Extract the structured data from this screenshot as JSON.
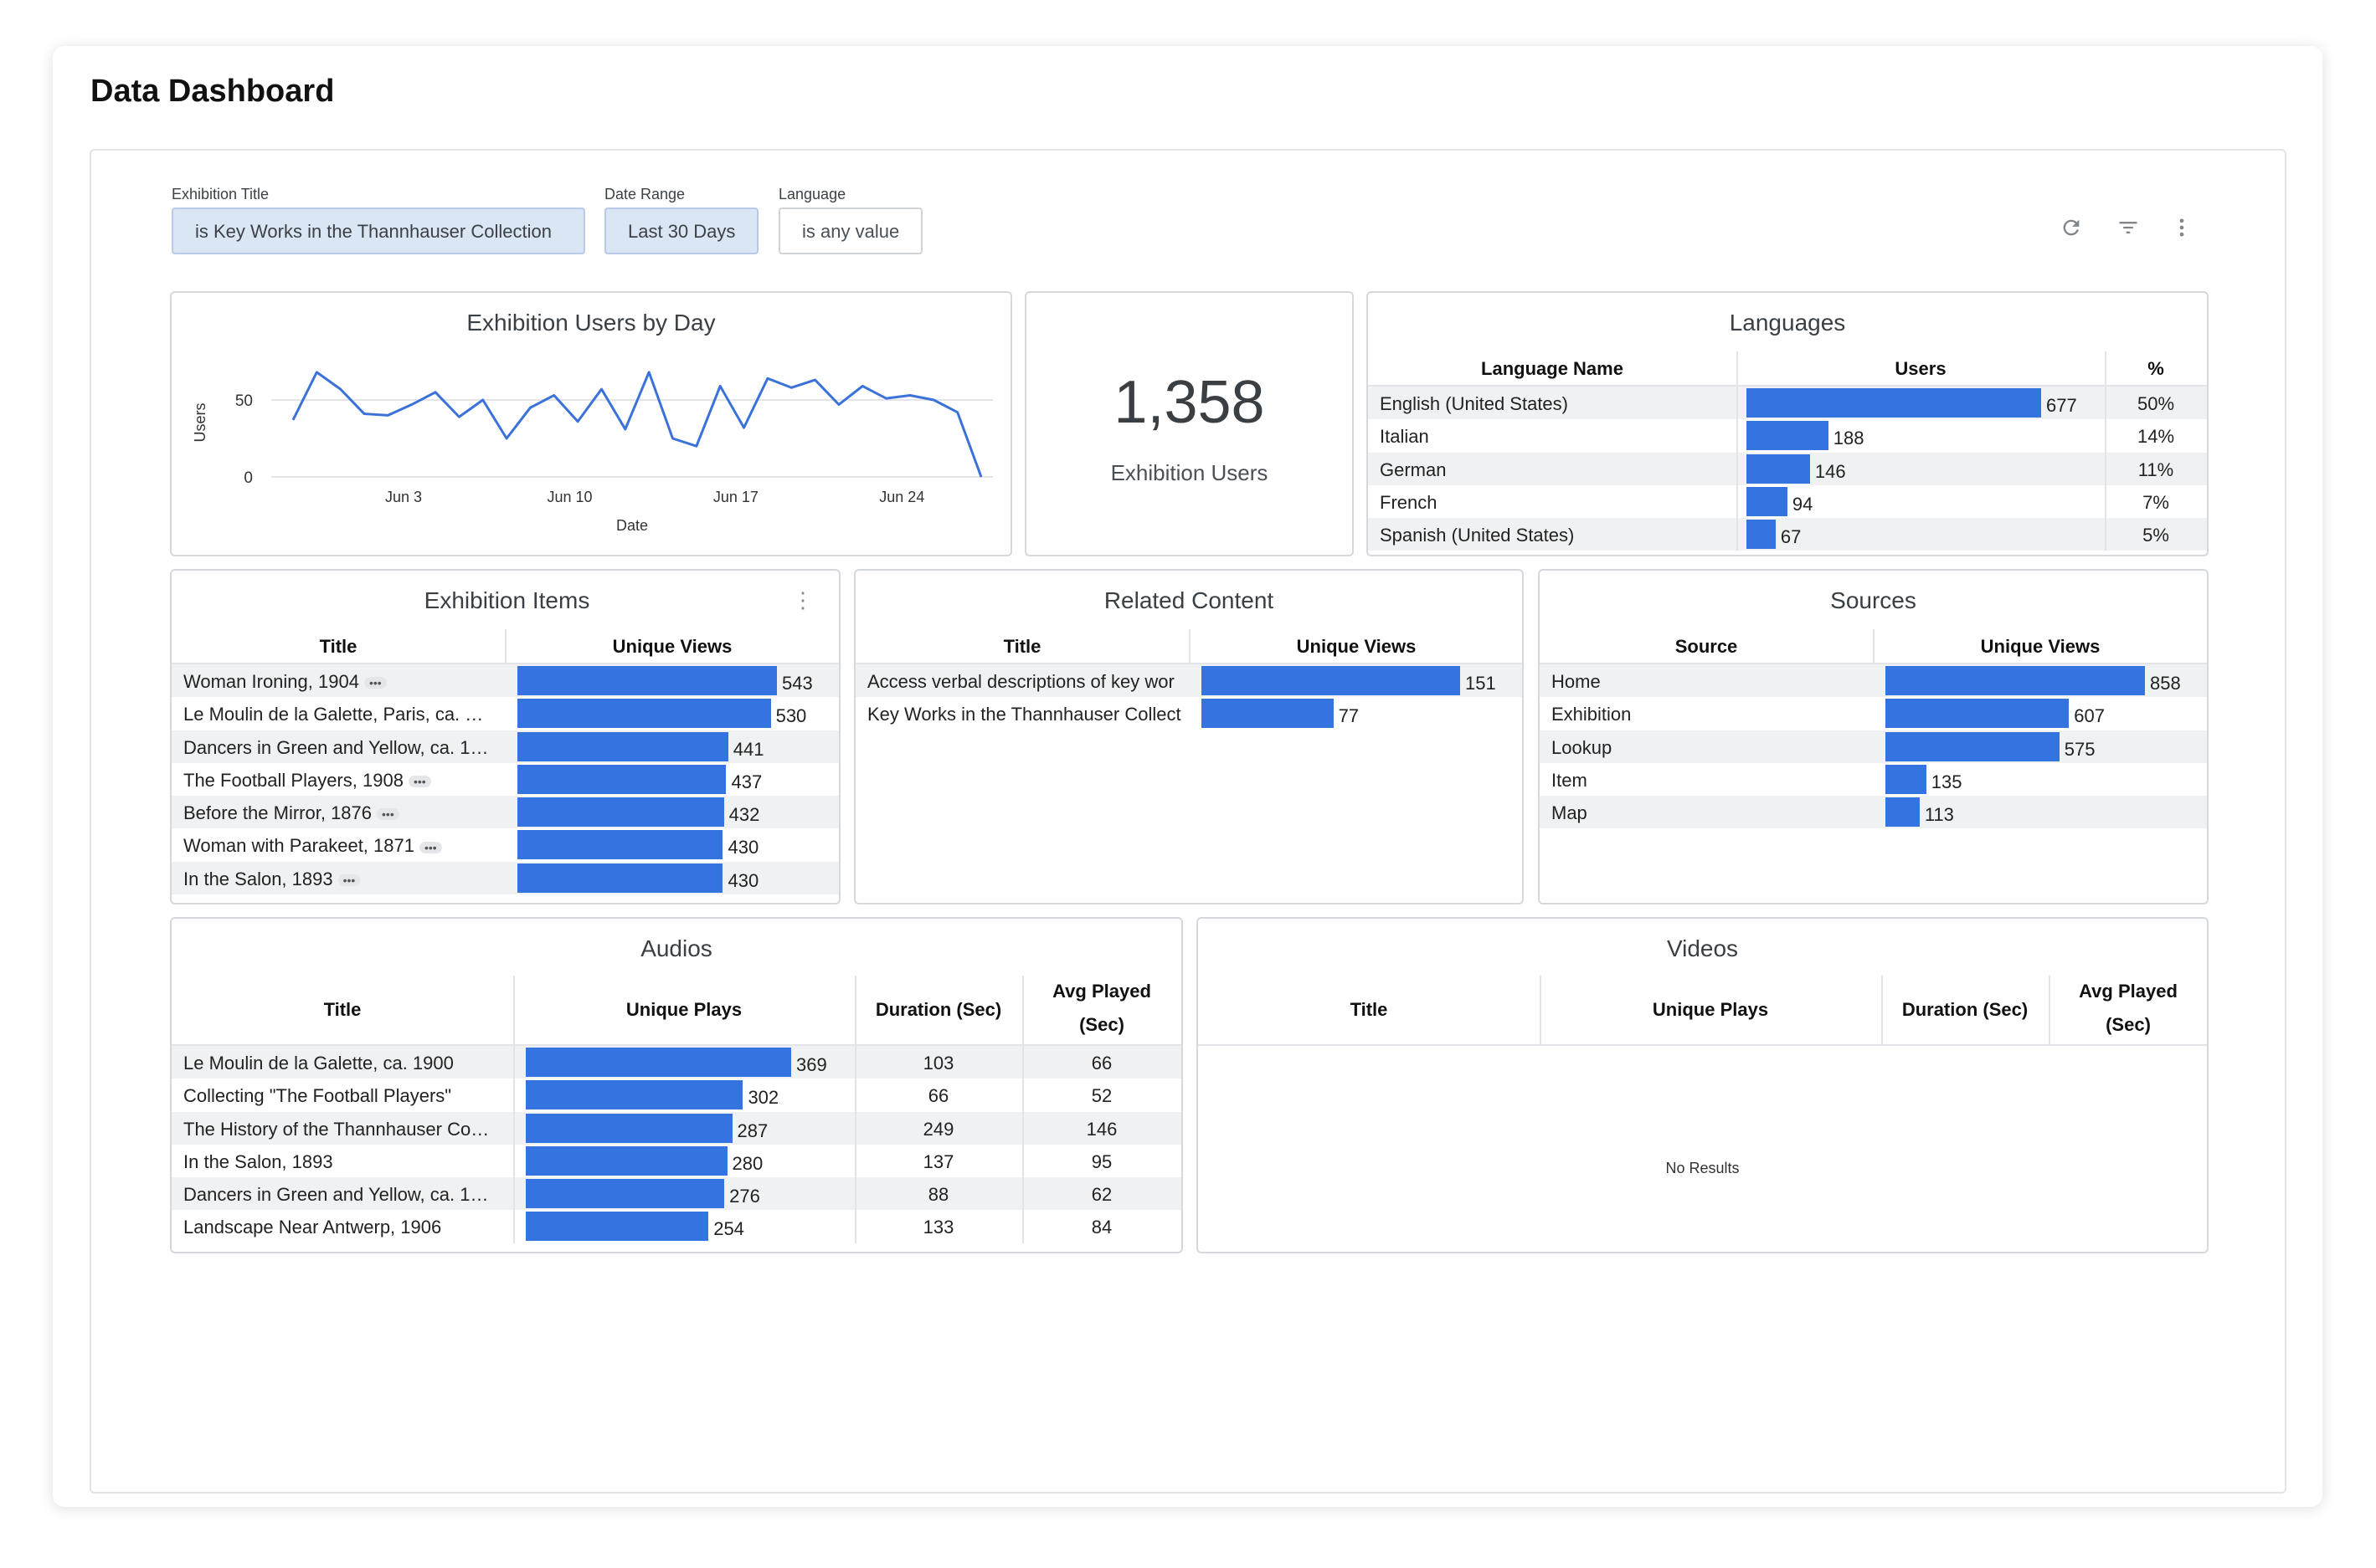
{
  "page": {
    "title": "Data Dashboard"
  },
  "filters": [
    {
      "label": "Exhibition Title",
      "value": "is Key Works in the Thannhauser Collection"
    },
    {
      "label": "Date Range",
      "value": "Last 30 Days"
    },
    {
      "label": "Language",
      "value": "is any value"
    }
  ],
  "toolbar": {
    "icons": [
      "refresh-icon",
      "filter-icon",
      "more-vert-icon"
    ]
  },
  "users_by_day": {
    "title": "Exhibition Users by Day",
    "chart_data": {
      "type": "line",
      "title": "Exhibition Users by Day",
      "xlabel": "Date",
      "ylabel": "Users",
      "x_ticks": [
        "Jun 3",
        "Jun 10",
        "Jun 17",
        "Jun 24"
      ],
      "y_ticks": [
        "0",
        "50"
      ],
      "ylim": [
        0,
        70
      ],
      "values": [
        37,
        68,
        57,
        41,
        40,
        47,
        55,
        39,
        50,
        25,
        45,
        53,
        36,
        57,
        31,
        68,
        25,
        20,
        59,
        32,
        64,
        58,
        63,
        47,
        59,
        51,
        53,
        50,
        42,
        0
      ],
      "color": "#3b72d9"
    }
  },
  "kpi": {
    "value": "1,358",
    "label": "Exhibition Users"
  },
  "languages": {
    "title": "Languages",
    "headers": [
      "Language Name",
      "Users",
      "%"
    ],
    "rows": [
      {
        "name": "English (United States)",
        "users": "677",
        "pct": "50%",
        "value": 677
      },
      {
        "name": "Italian",
        "users": "188",
        "pct": "14%",
        "value": 188
      },
      {
        "name": "German",
        "users": "146",
        "pct": "11%",
        "value": 146
      },
      {
        "name": "French",
        "users": "94",
        "pct": "7%",
        "value": 94
      },
      {
        "name": "Spanish (United States)",
        "users": "67",
        "pct": "5%",
        "value": 67
      }
    ]
  },
  "exhibition_items": {
    "title": "Exhibition Items",
    "headers": [
      "Title",
      "Unique Views"
    ],
    "more": "•••",
    "rows": [
      {
        "title": "Woman Ironing, 1904",
        "views": "543",
        "value": 543,
        "more": true
      },
      {
        "title": "Le Moulin de la Galette, Paris, ca. …",
        "views": "530",
        "value": 530,
        "more": false
      },
      {
        "title": "Dancers in Green and Yellow, ca. 1…",
        "views": "441",
        "value": 441,
        "more": false
      },
      {
        "title": "The Football Players, 1908",
        "views": "437",
        "value": 437,
        "more": true
      },
      {
        "title": "Before the Mirror, 1876",
        "views": "432",
        "value": 432,
        "more": true
      },
      {
        "title": "Woman with Parakeet, 1871",
        "views": "430",
        "value": 430,
        "more": true
      },
      {
        "title": "In the Salon, 1893",
        "views": "430",
        "value": 430,
        "more": true
      }
    ]
  },
  "related_content": {
    "title": "Related Content",
    "headers": [
      "Title",
      "Unique Views"
    ],
    "rows": [
      {
        "title": "Access verbal descriptions of key wor",
        "views": "151",
        "value": 151
      },
      {
        "title": "Key Works in the Thannhauser Collect",
        "views": "77",
        "value": 77
      }
    ]
  },
  "sources": {
    "title": "Sources",
    "headers": [
      "Source",
      "Unique Views"
    ],
    "rows": [
      {
        "title": "Home",
        "views": "858",
        "value": 858
      },
      {
        "title": "Exhibition",
        "views": "607",
        "value": 607
      },
      {
        "title": "Lookup",
        "views": "575",
        "value": 575
      },
      {
        "title": "Item",
        "views": "135",
        "value": 135
      },
      {
        "title": "Map",
        "views": "113",
        "value": 113
      }
    ]
  },
  "audios": {
    "title": "Audios",
    "headers": [
      "Title",
      "Unique Plays",
      "Duration (Sec)",
      "Avg Played",
      "(Sec)"
    ],
    "rows": [
      {
        "title": "Le Moulin de la Galette, ca. 1900",
        "plays": "369",
        "value": 369,
        "duration": "103",
        "avg": "66"
      },
      {
        "title": "Collecting \"The Football Players\"",
        "plays": "302",
        "value": 302,
        "duration": "66",
        "avg": "52"
      },
      {
        "title": "The History of the Thannhauser Co…",
        "plays": "287",
        "value": 287,
        "duration": "249",
        "avg": "146"
      },
      {
        "title": "In the Salon, 1893",
        "plays": "280",
        "value": 280,
        "duration": "137",
        "avg": "95"
      },
      {
        "title": "Dancers in Green and Yellow, ca. 1…",
        "plays": "276",
        "value": 276,
        "duration": "88",
        "avg": "62"
      },
      {
        "title": "Landscape Near Antwerp, 1906",
        "plays": "254",
        "value": 254,
        "duration": "133",
        "avg": "84"
      }
    ]
  },
  "videos": {
    "title": "Videos",
    "headers": [
      "Title",
      "Unique Plays",
      "Duration (Sec)",
      "Avg Played",
      "(Sec)"
    ],
    "empty_text": "No Results"
  },
  "colors": {
    "bar": "#3374e0",
    "line": "#3b72d9"
  }
}
